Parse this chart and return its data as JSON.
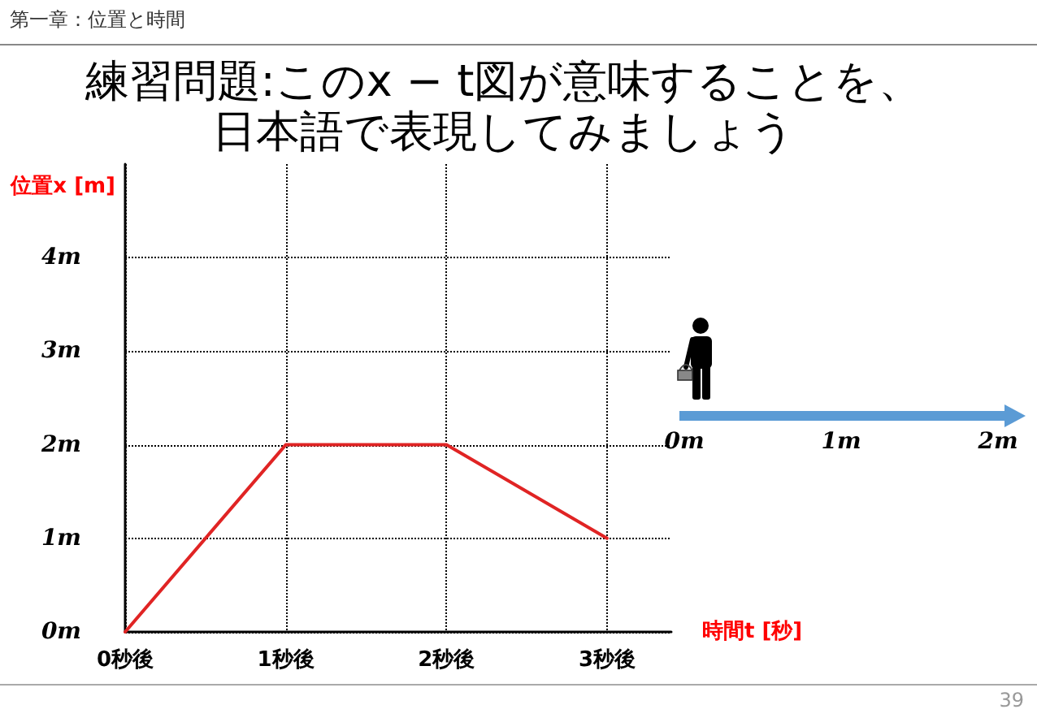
{
  "chart_data": {
    "type": "line",
    "title": "練習問題:このx − t図が意味することを、日本語で表現してみましょう",
    "xlabel": "時間t [秒]",
    "ylabel": "位置x [m]",
    "x": [
      0,
      1,
      2,
      3
    ],
    "series": [
      {
        "color": "#e02424",
        "values": [
          0,
          2,
          2,
          1
        ]
      }
    ],
    "xlim": [
      0,
      3.4
    ],
    "ylim": [
      0,
      5
    ],
    "xticks": [
      {
        "value": 0,
        "label": "0秒後"
      },
      {
        "value": 1,
        "label": "1秒後"
      },
      {
        "value": 2,
        "label": "2秒後"
      },
      {
        "value": 3,
        "label": "3秒後"
      }
    ],
    "yticks": [
      {
        "value": 0,
        "label": "0m"
      },
      {
        "value": 1,
        "label": "1m"
      },
      {
        "value": 2,
        "label": "2m"
      },
      {
        "value": 3,
        "label": "3m"
      },
      {
        "value": 4,
        "label": "4m"
      }
    ],
    "grid": true,
    "marker": "none",
    "line_style": "solid",
    "annotations": [
      "第一章：位置と時間",
      "0m",
      "1m",
      "2m",
      "39"
    ]
  }
}
